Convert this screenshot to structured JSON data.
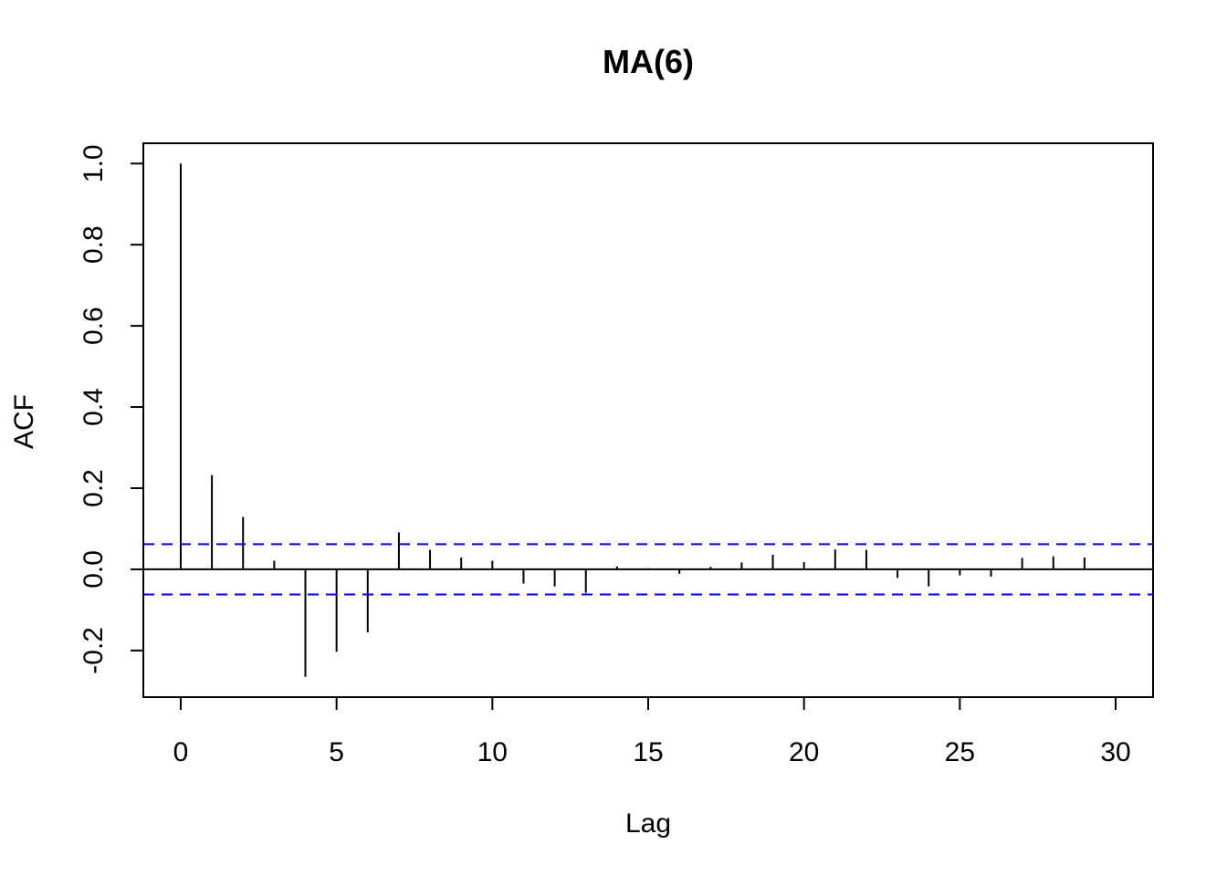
{
  "chart_data": {
    "type": "bar",
    "title": "MA(6)",
    "xlabel": "Lag",
    "ylabel": "ACF",
    "xlim": [
      -1.2,
      31.2
    ],
    "ylim": [
      -0.315,
      1.05
    ],
    "x_ticks": [
      0,
      5,
      10,
      15,
      20,
      25,
      30
    ],
    "x_tick_labels": [
      "0",
      "5",
      "10",
      "15",
      "20",
      "25",
      "30"
    ],
    "y_ticks": [
      -0.2,
      0.0,
      0.2,
      0.4,
      0.6,
      0.8,
      1.0
    ],
    "y_tick_labels": [
      "-0.2",
      "0.0",
      "0.2",
      "0.4",
      "0.6",
      "0.8",
      "1.0"
    ],
    "confidence_bound": 0.062,
    "grid": false,
    "legend": "none",
    "colors": {
      "bars": "#000000",
      "confidence": "#0000ff",
      "axes": "#000000"
    },
    "x": [
      0,
      1,
      2,
      3,
      4,
      5,
      6,
      7,
      8,
      9,
      10,
      11,
      12,
      13,
      14,
      15,
      16,
      17,
      18,
      19,
      20,
      21,
      22,
      23,
      24,
      25,
      26,
      27,
      28,
      29,
      30
    ],
    "values": [
      1.0,
      0.232,
      0.129,
      0.021,
      -0.265,
      -0.203,
      -0.155,
      0.091,
      0.048,
      0.029,
      0.021,
      -0.035,
      -0.042,
      -0.058,
      0.007,
      0.003,
      -0.011,
      0.006,
      0.017,
      0.036,
      0.018,
      0.049,
      0.048,
      -0.021,
      -0.042,
      -0.015,
      -0.018,
      0.028,
      0.032,
      0.029,
      0.002
    ]
  }
}
